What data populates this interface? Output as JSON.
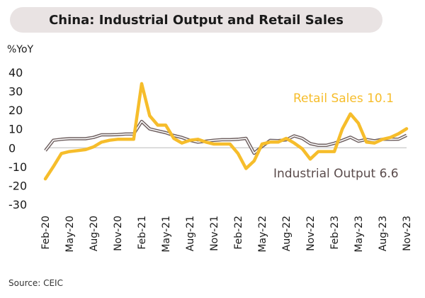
{
  "header": {
    "title": "China: Industrial Output and Retail Sales"
  },
  "footer": {
    "source": "Source: CEIC"
  },
  "chart_data": {
    "type": "line",
    "title": "China: Industrial Output and Retail Sales",
    "ylabel": "%YoY",
    "xlabel": "",
    "ylim": [
      -30,
      40
    ],
    "yticks": [
      40,
      30,
      20,
      10,
      0,
      -10,
      -20,
      -30
    ],
    "x": [
      "Feb-20",
      "Mar-20",
      "Apr-20",
      "May-20",
      "Jun-20",
      "Jul-20",
      "Aug-20",
      "Sep-20",
      "Oct-20",
      "Nov-20",
      "Dec-20",
      "Jan-21",
      "Feb-21",
      "Mar-21",
      "Apr-21",
      "May-21",
      "Jun-21",
      "Jul-21",
      "Aug-21",
      "Sep-21",
      "Oct-21",
      "Nov-21",
      "Dec-21",
      "Jan-22",
      "Feb-22",
      "Mar-22",
      "Apr-22",
      "May-22",
      "Jun-22",
      "Jul-22",
      "Aug-22",
      "Sep-22",
      "Oct-22",
      "Nov-22",
      "Dec-22",
      "Jan-23",
      "Feb-23",
      "Mar-23",
      "Apr-23",
      "May-23",
      "Jun-23",
      "Jul-23",
      "Aug-23",
      "Sep-23",
      "Oct-23",
      "Nov-23"
    ],
    "xtick_labels": [
      "Feb-20",
      "May-20",
      "Aug-20",
      "Nov-20",
      "Feb-21",
      "May-21",
      "Aug-21",
      "Nov-21",
      "Feb-22",
      "May-22",
      "Aug-22",
      "Nov-22",
      "Feb-23",
      "May-23",
      "Aug-23",
      "Nov-23"
    ],
    "grid": false,
    "series": [
      {
        "name": "Retail Sales",
        "label": "Retail Sales 10.1",
        "color": "#f6bd2b",
        "values": [
          -16.5,
          -10,
          -3,
          -2,
          -1.5,
          -1,
          0.5,
          3,
          4,
          4.5,
          4.5,
          4.5,
          34,
          17,
          12,
          12,
          5,
          2.5,
          4,
          4.5,
          3,
          2,
          2,
          2,
          -3,
          -11,
          -7,
          2,
          3,
          3,
          5,
          2.5,
          -0.5,
          -6,
          -2,
          -2,
          -2,
          10,
          18,
          13,
          3,
          2.5,
          4.5,
          5.5,
          7.5,
          10.1
        ]
      },
      {
        "name": "Industrial Output",
        "label": "Industrial Output 6.6",
        "color": "#6f6060",
        "values": [
          -1.5,
          4,
          4.5,
          4.8,
          4.8,
          4.8,
          5.5,
          6.9,
          6.9,
          7,
          7.3,
          7.3,
          14,
          10,
          9,
          8,
          6.5,
          5.5,
          4,
          3,
          3.5,
          4,
          4.3,
          4.3,
          4.5,
          5,
          -2.9,
          0.7,
          3.9,
          3.8,
          4.2,
          6.3,
          5,
          2.2,
          1.3,
          1.3,
          2.4,
          3.9,
          5.6,
          3.5,
          4.4,
          3.7,
          4.5,
          4.5,
          4.6,
          6.6
        ]
      }
    ]
  }
}
